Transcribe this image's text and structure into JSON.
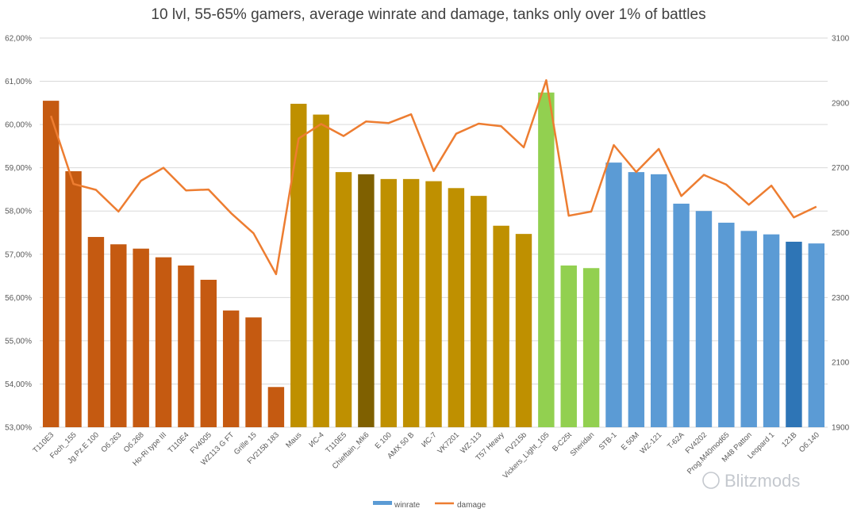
{
  "chart_data": {
    "type": "bar",
    "title": "10 lvl, 55-65% gamers, average winrate and damage, tanks only over 1% of battles",
    "categories": [
      "T110E3",
      "Foch_155",
      "Jg.Pz.E 100",
      "Об.263",
      "Об.268",
      "Ho-Ri type III",
      "T110E4",
      "FV4005",
      "WZ113 G FT",
      "Grille 15",
      "FV215b 183",
      "Maus",
      "ИС-4",
      "T110E5",
      "Chieftain_Mk6",
      "E 100",
      "AMX 50 B",
      "ИС-7",
      "VK7201",
      "WZ-113",
      "T57 Heavy",
      "FV215b",
      "Vickers_Light_105",
      "B-C25t",
      "Sheridan",
      "STB-1",
      "E 50M",
      "WZ-121",
      "T-62A",
      "FV4202",
      "Prog.M40mod65",
      "M48 Patton",
      "Leopard 1",
      "121B",
      "Об.140"
    ],
    "colors": [
      "#c55a11",
      "#c55a11",
      "#c55a11",
      "#c55a11",
      "#c55a11",
      "#c55a11",
      "#c55a11",
      "#c55a11",
      "#c55a11",
      "#c55a11",
      "#c55a11",
      "#bf9000",
      "#bf9000",
      "#bf9000",
      "#7f6000",
      "#bf9000",
      "#bf9000",
      "#bf9000",
      "#bf9000",
      "#bf9000",
      "#bf9000",
      "#bf9000",
      "#92d050",
      "#92d050",
      "#92d050",
      "#5b9bd5",
      "#5b9bd5",
      "#5b9bd5",
      "#5b9bd5",
      "#5b9bd5",
      "#5b9bd5",
      "#5b9bd5",
      "#5b9bd5",
      "#2e75b6",
      "#5b9bd5"
    ],
    "series": [
      {
        "name": "winrate",
        "axis": "left",
        "type": "bar",
        "values": [
          60.55,
          58.92,
          57.4,
          57.23,
          57.13,
          56.93,
          56.74,
          56.41,
          55.7,
          55.54,
          53.93,
          60.48,
          60.23,
          58.9,
          58.85,
          58.74,
          58.74,
          58.69,
          58.53,
          58.35,
          57.66,
          57.47,
          60.74,
          56.74,
          56.68,
          59.12,
          58.9,
          58.85,
          58.17,
          58.0,
          57.73,
          57.54,
          57.46,
          57.29,
          57.25
        ],
        "color": "#5b9bd5"
      },
      {
        "name": "damage",
        "axis": "right",
        "type": "line",
        "values": [
          2860,
          2650,
          2632,
          2565,
          2660,
          2700,
          2630,
          2633,
          2560,
          2498,
          2372,
          2790,
          2835,
          2798,
          2843,
          2838,
          2865,
          2690,
          2805,
          2836,
          2828,
          2763,
          2970,
          2552,
          2565,
          2770,
          2687,
          2758,
          2613,
          2678,
          2648,
          2586,
          2645,
          2547,
          2580
        ],
        "color": "#ed7d31"
      }
    ],
    "yleft": {
      "lim": [
        53.0,
        62.0
      ],
      "ticks": [
        "53,00%",
        "54,00%",
        "55,00%",
        "56,00%",
        "57,00%",
        "58,00%",
        "59,00%",
        "60,00%",
        "61,00%",
        "62,00%"
      ]
    },
    "yright": {
      "lim": [
        1900,
        3100
      ],
      "ticks": [
        "1900",
        "2100",
        "2300",
        "2500",
        "2700",
        "2900",
        "3100"
      ]
    },
    "grid": true,
    "legend": {
      "placement": "bottom",
      "entries": [
        "winrate",
        "damage"
      ]
    }
  },
  "watermark": "Blitzmods"
}
